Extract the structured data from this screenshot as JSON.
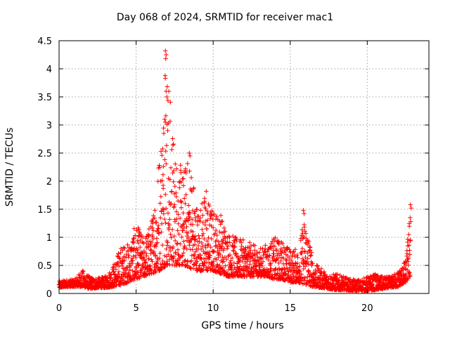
{
  "chart_data": {
    "type": "scatter",
    "title": "Day 068 of 2024, SRMTID for receiver mac1",
    "xlabel": "GPS time / hours",
    "ylabel": "SRMTID / TECUs",
    "xlim": [
      0,
      24
    ],
    "ylim": [
      0,
      4.5
    ],
    "x_ticks": [
      0,
      5,
      10,
      15,
      20
    ],
    "y_ticks": [
      0,
      0.5,
      1,
      1.5,
      2,
      2.5,
      3,
      3.5,
      4,
      4.5
    ],
    "x_tick_labels": [
      "0",
      "5",
      "10",
      "15",
      "20"
    ],
    "y_tick_labels": [
      "0",
      "0.5",
      "1",
      "1.5",
      "2",
      "2.5",
      "3",
      "3.5",
      "4",
      "4.5"
    ],
    "grid": true,
    "marker": "+",
    "color": "#ff0000",
    "series": [
      {
        "name": "SRMTID",
        "envelope": {
          "x": [
            0,
            0.5,
            1,
            1.5,
            2,
            2.5,
            3,
            3.5,
            4,
            4.5,
            5,
            5.5,
            6,
            6.5,
            7,
            7.5,
            8,
            8.5,
            9,
            9.5,
            10,
            10.5,
            11,
            11.5,
            12,
            12.5,
            13,
            13.5,
            14,
            14.5,
            15,
            15.5,
            16,
            16.5,
            17,
            17.5,
            18,
            18.5,
            19,
            19.5,
            20,
            20.5,
            21,
            21.5,
            22,
            22.5,
            22.8
          ],
          "low": [
            0.1,
            0.12,
            0.12,
            0.12,
            0.08,
            0.1,
            0.1,
            0.12,
            0.15,
            0.2,
            0.25,
            0.3,
            0.35,
            0.4,
            0.5,
            0.5,
            0.5,
            0.45,
            0.4,
            0.4,
            0.4,
            0.35,
            0.3,
            0.3,
            0.3,
            0.3,
            0.3,
            0.3,
            0.25,
            0.25,
            0.2,
            0.2,
            0.15,
            0.12,
            0.1,
            0.08,
            0.06,
            0.06,
            0.05,
            0.05,
            0.05,
            0.06,
            0.08,
            0.1,
            0.12,
            0.2,
            0.3
          ],
          "high": [
            0.22,
            0.25,
            0.25,
            0.42,
            0.3,
            0.28,
            0.3,
            0.5,
            0.85,
            0.9,
            1.25,
            1.0,
            1.3,
            2.6,
            4.3,
            2.6,
            2.2,
            2.5,
            1.55,
            1.8,
            1.5,
            1.45,
            1.1,
            1.0,
            0.95,
            0.9,
            0.8,
            0.9,
            1.0,
            0.95,
            0.8,
            0.8,
            1.48,
            0.55,
            0.45,
            0.35,
            0.35,
            0.3,
            0.25,
            0.25,
            0.3,
            0.35,
            0.3,
            0.3,
            0.4,
            0.6,
            1.58
          ]
        },
        "peaks": [
          {
            "x": 6.9,
            "y": 4.32
          },
          {
            "x": 6.95,
            "y": 4.25
          },
          {
            "x": 6.92,
            "y": 4.18
          },
          {
            "x": 6.88,
            "y": 3.88
          },
          {
            "x": 6.9,
            "y": 3.83
          },
          {
            "x": 6.95,
            "y": 3.6
          },
          {
            "x": 7.0,
            "y": 3.5
          },
          {
            "x": 6.85,
            "y": 3.1
          },
          {
            "x": 6.9,
            "y": 3.05
          },
          {
            "x": 6.8,
            "y": 2.85
          },
          {
            "x": 7.05,
            "y": 2.9
          },
          {
            "x": 8.45,
            "y": 2.5
          },
          {
            "x": 8.5,
            "y": 2.45
          },
          {
            "x": 9.55,
            "y": 1.82
          },
          {
            "x": 15.85,
            "y": 1.48
          },
          {
            "x": 15.9,
            "y": 1.42
          },
          {
            "x": 22.8,
            "y": 1.58
          },
          {
            "x": 22.85,
            "y": 1.52
          },
          {
            "x": 22.78,
            "y": 1.35
          },
          {
            "x": 22.82,
            "y": 1.28
          }
        ],
        "n_points": 2600
      }
    ]
  }
}
